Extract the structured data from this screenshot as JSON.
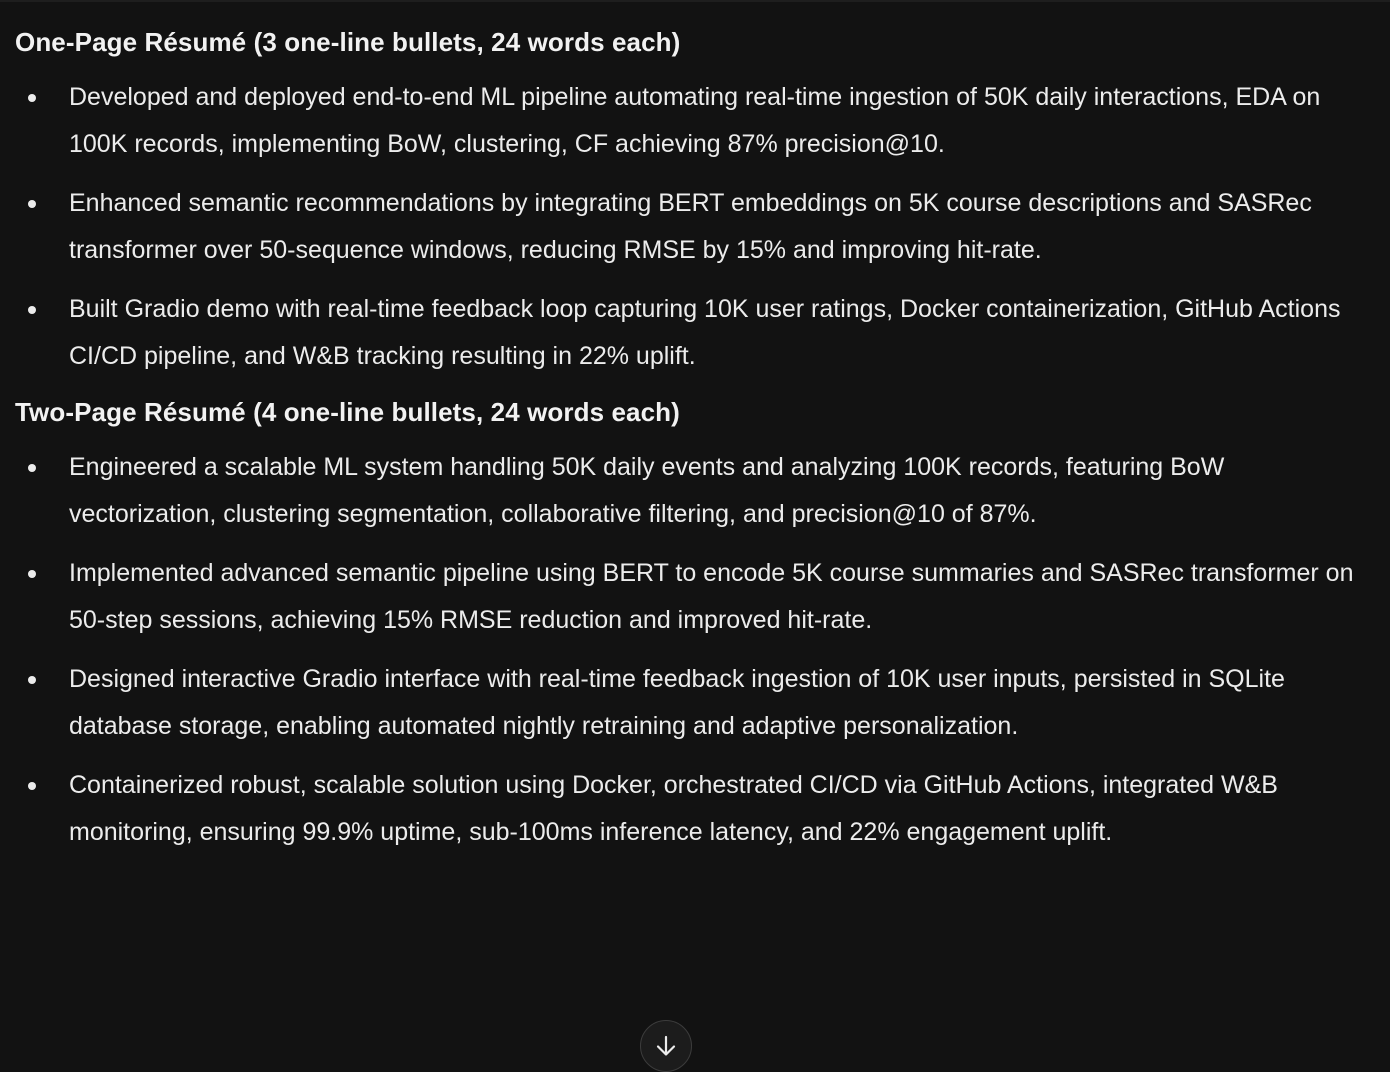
{
  "sections": [
    {
      "heading": "One-Page Résumé (3 one-line bullets, 24 words each)",
      "bullets": [
        "Developed and deployed end-to-end ML pipeline automating real-time ingestion of 50K daily interactions, EDA on 100K records, implementing BoW, clustering, CF achieving 87% precision@10.",
        "Enhanced semantic recommendations by integrating BERT embeddings on 5K course descriptions and SASRec transformer over 50-sequence windows, reducing RMSE by 15% and improving hit-rate.",
        "Built Gradio demo with real-time feedback loop capturing 10K user ratings, Docker containerization, GitHub Actions CI/CD pipeline, and W&B tracking resulting in 22% uplift."
      ]
    },
    {
      "heading": "Two-Page Résumé (4 one-line bullets, 24 words each)",
      "bullets": [
        "Engineered a scalable ML system handling 50K daily events and analyzing 100K records, featuring BoW vectorization, clustering segmentation, collaborative filtering, and precision@10 of 87%.",
        "Implemented advanced semantic pipeline using BERT to encode 5K course summaries and SASRec transformer on 50-step sessions, achieving 15% RMSE reduction and improved hit-rate.",
        "Designed interactive Gradio interface with real-time feedback ingestion of 10K user inputs, persisted in SQLite database storage, enabling automated nightly retraining and adaptive personalization.",
        "Containerized robust, scalable solution using Docker, orchestrated CI/CD via GitHub Actions, integrated W&B monitoring, ensuring 99.9% uptime, sub-100ms inference latency, and 22% engagement uplift."
      ]
    }
  ],
  "scroll_button": {
    "icon": "arrow-down-icon"
  },
  "colors": {
    "background": "#121212",
    "text": "#ececec"
  }
}
